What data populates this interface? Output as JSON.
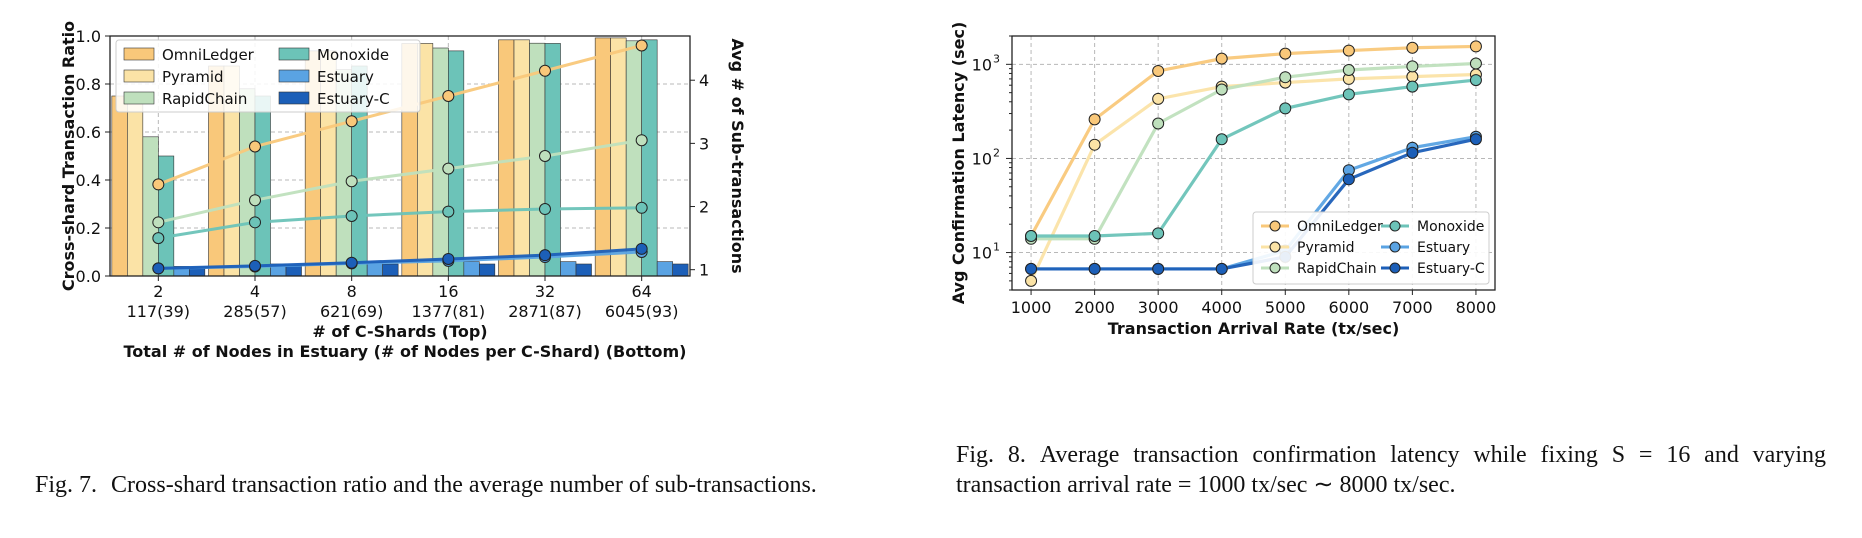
{
  "colors": {
    "OmniLedger": "#f9c87a",
    "Pyramid": "#fbe3a6",
    "RapidChain": "#bfe0bd",
    "Monoxide": "#6cc3b8",
    "Estuary": "#5aa3e3",
    "Estuary-C": "#1c5fb8"
  },
  "chart_data": [
    {
      "id": "fig7",
      "type": "bar",
      "categories": [
        "2",
        "4",
        "8",
        "16",
        "32",
        "64"
      ],
      "category_sublabels": [
        "117(39)",
        "285(57)",
        "621(69)",
        "1377(81)",
        "2871(87)",
        "6045(93)"
      ],
      "xlabel": "# of C-Shards (Top)",
      "xlabel2": "Total # of Nodes in Estuary (# of Nodes per C-Shard) (Bottom)",
      "ylabel": "Cross-shard Transaction Ratio",
      "ylabel_right": "Avg # of Sub-transactions",
      "ylim": [
        0,
        1.0
      ],
      "yticks": [
        "0.0",
        "0.2",
        "0.4",
        "0.6",
        "0.8",
        "1.0"
      ],
      "ylim_right": [
        0.9,
        4.7
      ],
      "yticks_right": [
        "1",
        "2",
        "3",
        "4"
      ],
      "legend": [
        "OmniLedger",
        "Pyramid",
        "RapidChain",
        "Monoxide",
        "Estuary",
        "Estuary-C"
      ],
      "series": [
        {
          "name": "OmniLedger",
          "values": [
            0.75,
            0.875,
            0.938,
            0.969,
            0.984,
            0.992
          ]
        },
        {
          "name": "Pyramid",
          "values": [
            0.75,
            0.875,
            0.938,
            0.969,
            0.984,
            0.992
          ]
        },
        {
          "name": "RapidChain",
          "values": [
            0.58,
            0.78,
            0.86,
            0.95,
            0.97,
            0.98
          ]
        },
        {
          "name": "Monoxide",
          "values": [
            0.5,
            0.75,
            0.875,
            0.938,
            0.969,
            0.984
          ]
        },
        {
          "name": "Estuary",
          "values": [
            0.04,
            0.05,
            0.055,
            0.06,
            0.06,
            0.06
          ]
        },
        {
          "name": "Estuary-C",
          "values": [
            0.035,
            0.045,
            0.05,
            0.05,
            0.05,
            0.05
          ]
        }
      ],
      "lines": [
        {
          "name": "OmniLedger",
          "values": [
            2.35,
            2.95,
            3.35,
            3.75,
            4.15,
            4.55
          ]
        },
        {
          "name": "RapidChain",
          "values": [
            1.75,
            2.1,
            2.4,
            2.6,
            2.8,
            3.05
          ]
        },
        {
          "name": "Monoxide",
          "values": [
            1.5,
            1.75,
            1.85,
            1.92,
            1.96,
            1.98
          ]
        },
        {
          "name": "Estuary",
          "values": [
            1.02,
            1.05,
            1.1,
            1.14,
            1.2,
            1.28
          ]
        },
        {
          "name": "Estuary-C",
          "values": [
            1.02,
            1.06,
            1.11,
            1.17,
            1.23,
            1.33
          ]
        }
      ]
    },
    {
      "id": "fig8",
      "type": "line",
      "x": [
        1000,
        2000,
        3000,
        4000,
        5000,
        6000,
        7000,
        8000
      ],
      "xlabel": "Transaction Arrival Rate (tx/sec)",
      "ylabel": "Avg Confirmation Latency (sec)",
      "yscale": "log",
      "ylim": [
        4,
        2000
      ],
      "yticks": [
        "10",
        "10",
        "10"
      ],
      "ytick_exponents": [
        "1",
        "2",
        "3"
      ],
      "legend": [
        "OmniLedger",
        "Pyramid",
        "RapidChain",
        "Monoxide",
        "Estuary",
        "Estuary-C"
      ],
      "series": [
        {
          "name": "OmniLedger",
          "values": [
            15,
            260,
            850,
            1150,
            1300,
            1400,
            1500,
            1550
          ]
        },
        {
          "name": "Pyramid",
          "values": [
            5,
            140,
            430,
            580,
            640,
            700,
            740,
            780
          ]
        },
        {
          "name": "RapidChain",
          "values": [
            14,
            14,
            235,
            540,
            730,
            870,
            950,
            1020
          ]
        },
        {
          "name": "Monoxide",
          "values": [
            15,
            15,
            16,
            160,
            340,
            480,
            580,
            680
          ]
        },
        {
          "name": "Estuary",
          "values": [
            6.7,
            6.7,
            6.7,
            6.7,
            10.5,
            75,
            130,
            170
          ]
        },
        {
          "name": "Estuary-C",
          "values": [
            6.7,
            6.7,
            6.7,
            6.7,
            9,
            60,
            115,
            160
          ]
        }
      ]
    }
  ],
  "captions": {
    "fig7_num": "Fig. 7.",
    "fig7_text": "Cross-shard transaction ratio and the average number of sub-transactions.",
    "fig8_num": "Fig. 8.",
    "fig8_text": "Average transaction confirmation latency while fixing S = 16 and varying transaction arrival rate = 1000 tx/sec ∼ 8000 tx/sec."
  }
}
